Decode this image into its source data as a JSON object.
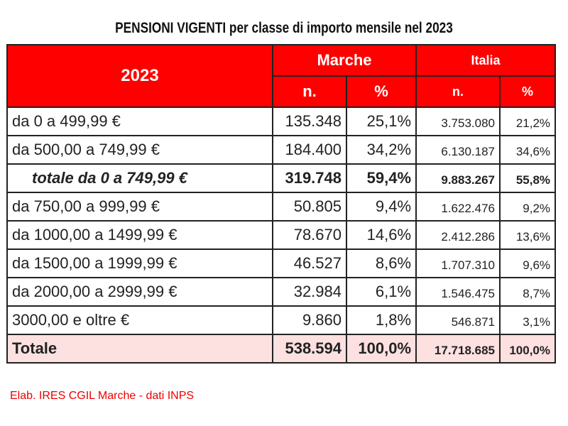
{
  "title": "PENSIONI VIGENTI per classe di importo mensile nel 2023",
  "header": {
    "year": "2023",
    "marche": "Marche",
    "italia": "Italia",
    "n": "n.",
    "pct": "%"
  },
  "rows": [
    {
      "label": "da 0 a 499,99 €",
      "mn": "135.348",
      "mp": "25,1%",
      "in": "3.753.080",
      "ip": "21,2%"
    },
    {
      "label": "da 500,00 a 749,99 €",
      "mn": "184.400",
      "mp": "34,2%",
      "in": "6.130.187",
      "ip": "34,6%"
    },
    {
      "label": "totale da 0 a 749,99 €",
      "mn": "319.748",
      "mp": "59,4%",
      "in": "9.883.267",
      "ip": "55,8%"
    },
    {
      "label": "da 750,00 a 999,99 €",
      "mn": "50.805",
      "mp": "9,4%",
      "in": "1.622.476",
      "ip": "9,2%"
    },
    {
      "label": "da 1000,00 a 1499,99 €",
      "mn": "78.670",
      "mp": "14,6%",
      "in": "2.412.286",
      "ip": "13,6%"
    },
    {
      "label": "da 1500,00 a 1999,99 €",
      "mn": "46.527",
      "mp": "8,6%",
      "in": "1.707.310",
      "ip": "9,6%"
    },
    {
      "label": "da 2000,00 a 2999,99 €",
      "mn": "32.984",
      "mp": "6,1%",
      "in": "1.546.475",
      "ip": "8,7%"
    },
    {
      "label": "3000,00 e oltre €",
      "mn": "9.860",
      "mp": "1,8%",
      "in": "546.871",
      "ip": "3,1%"
    },
    {
      "label": "Totale",
      "mn": "538.594",
      "mp": "100,0%",
      "in": "17.718.685",
      "ip": "100,0%"
    }
  ],
  "note": "Elab. IRES CGIL Marche - dati INPS"
}
